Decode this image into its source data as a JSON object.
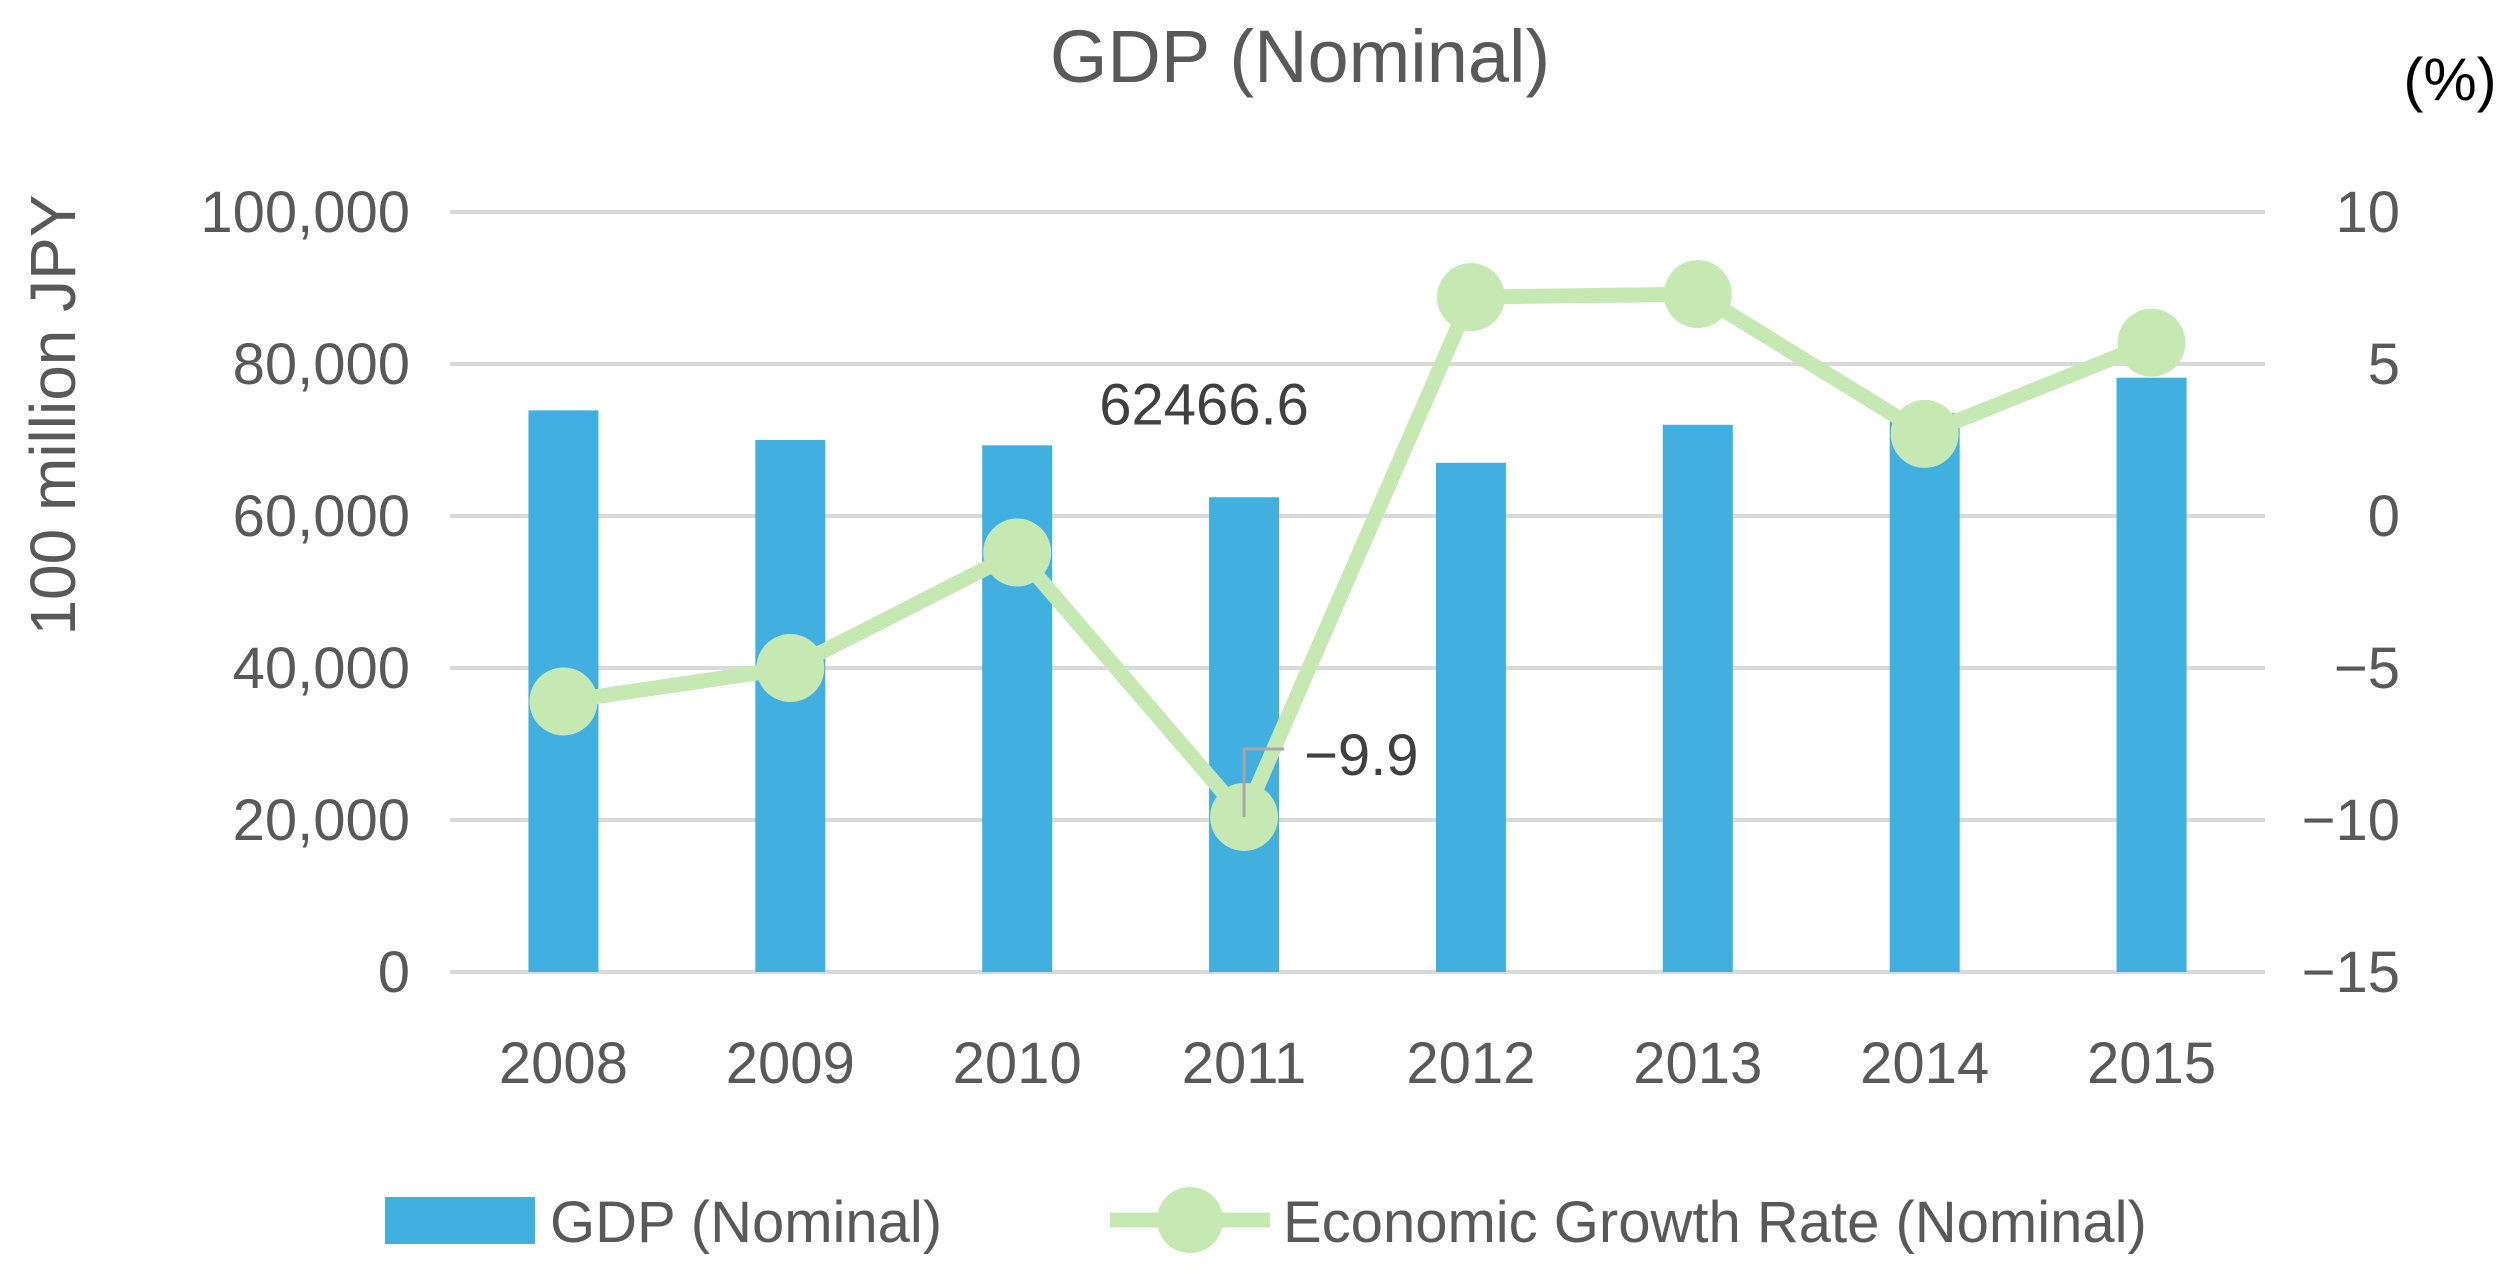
{
  "chart_data": {
    "type": "bar",
    "title": "GDP (Nominal)",
    "categories": [
      "2008",
      "2009",
      "2010",
      "2011",
      "2012",
      "2013",
      "2014",
      "2015"
    ],
    "series": [
      {
        "name": "GDP (Nominal)",
        "type": "bar",
        "axis": "left",
        "color": "#41b0e1",
        "values": [
          73900,
          70000,
          69300,
          62466.6,
          67000,
          72000,
          73500,
          78200
        ]
      },
      {
        "name": "Economic Growth Rate (Nominal)",
        "type": "line",
        "axis": "right",
        "color": "#c6e9b4",
        "values": [
          -6.1,
          -5.0,
          -1.2,
          -9.9,
          7.2,
          7.3,
          2.7,
          5.7
        ]
      }
    ],
    "y_left": {
      "label": "100 million JPY",
      "range": [
        0,
        100000
      ],
      "ticks": [
        "0",
        "20,000",
        "40,000",
        "60,000",
        "80,000",
        "100,000"
      ]
    },
    "y_right": {
      "unit": "(%)",
      "range": [
        -15,
        10
      ],
      "ticks": [
        "−15",
        "−10",
        "−5",
        "0",
        "5",
        "10"
      ]
    },
    "annotations": [
      {
        "series": 0,
        "category": "2011",
        "text": "62466.6"
      },
      {
        "series": 1,
        "category": "2011",
        "text": "−9.9"
      }
    ],
    "legend_position": "bottom",
    "grid": true
  }
}
